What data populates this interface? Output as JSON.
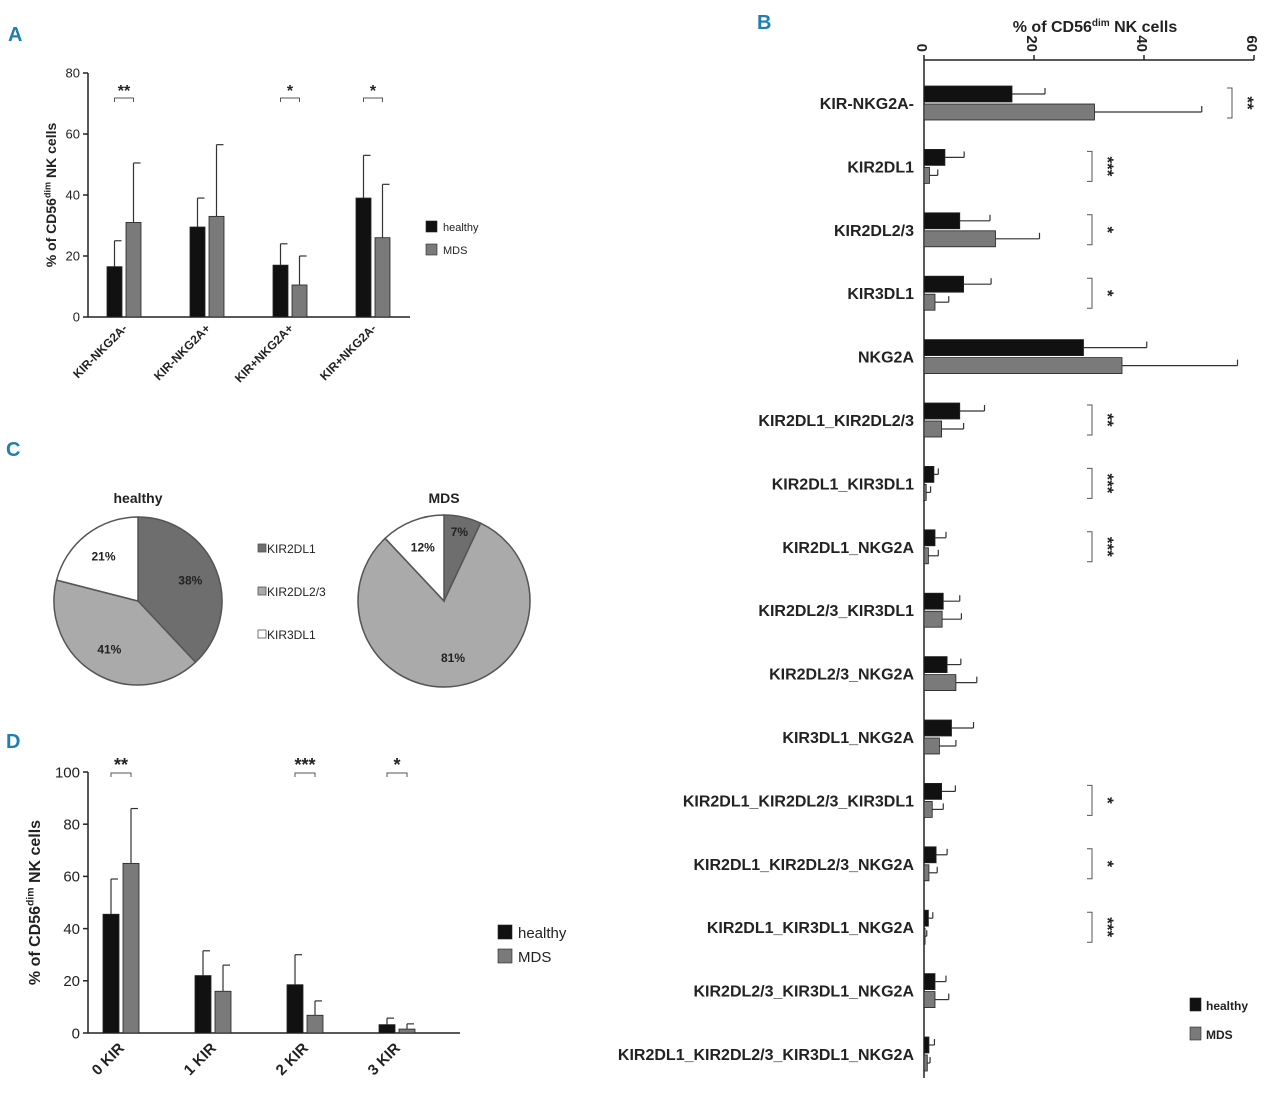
{
  "colors": {
    "healthy": "#111111",
    "mds": "#7a7a7a",
    "slice_dark": "#6e6e6e",
    "slice_light": "#aaaaaa",
    "slice_white": "#ffffff",
    "panel_label": "#1f7fae"
  },
  "chart_data": [
    {
      "panel": "A",
      "type": "bar",
      "ylabel_prefix": "% of CD56",
      "ylabel_sup": "dim",
      "ylabel_suffix": " NK cells",
      "ylim": [
        0,
        80
      ],
      "yticks": [
        0,
        20,
        40,
        60,
        80
      ],
      "categories": [
        "KIR-NKG2A-",
        "KIR-NKG2A+",
        "KIR+NKG2A+",
        "KIR+NKG2A-"
      ],
      "series": [
        {
          "name": "healthy",
          "values": [
            16.5,
            29.5,
            17,
            39
          ],
          "errors": [
            8.5,
            9.5,
            7,
            14
          ]
        },
        {
          "name": "MDS",
          "values": [
            31,
            33,
            10.5,
            26
          ],
          "errors": [
            19.5,
            23.5,
            9.5,
            17.5
          ]
        }
      ],
      "significance": [
        "**",
        "",
        "*",
        "*"
      ],
      "legend": [
        "healthy",
        "MDS"
      ]
    },
    {
      "panel": "B",
      "type": "bar",
      "orientation": "horizontal",
      "xlabel_prefix": "% of CD56",
      "xlabel_sup": "dim",
      "xlabel_suffix": " NK cells",
      "xlim": [
        0,
        60
      ],
      "xticks": [
        0,
        20,
        40,
        60
      ],
      "categories": [
        "KIR-NKG2A-",
        "KIR2DL1",
        "KIR2DL2/3",
        "KIR3DL1",
        "NKG2A",
        "KIR2DL1_KIR2DL2/3",
        "KIR2DL1_KIR3DL1",
        "KIR2DL1_NKG2A",
        "KIR2DL2/3_KIR3DL1",
        "KIR2DL2/3_NKG2A",
        "KIR3DL1_NKG2A",
        "KIR2DL1_KIR2DL2/3_KIR3DL1",
        "KIR2DL1_KIR2DL2/3_NKG2A",
        "KIR2DL1_KIR3DL1_NKG2A",
        "KIR2DL2/3_KIR3DL1_NKG2A",
        "KIR2DL1_KIR2DL2/3_KIR3DL1_NKG2A"
      ],
      "series": [
        {
          "name": "healthy",
          "values": [
            16,
            3.8,
            6.5,
            7.2,
            29,
            6.5,
            1.8,
            2,
            3.5,
            4.2,
            5,
            3.2,
            2.2,
            0.8,
            2,
            0.9
          ],
          "errors": [
            6,
            3.5,
            5.5,
            5,
            11.5,
            4.5,
            0.8,
            2,
            3,
            2.5,
            4,
            2.5,
            2,
            0.8,
            2,
            1
          ]
        },
        {
          "name": "MDS",
          "values": [
            31,
            1,
            13,
            2,
            36,
            3.2,
            0.4,
            0.8,
            3.3,
            5.8,
            2.8,
            1.5,
            0.9,
            0.2,
            2,
            0.6
          ],
          "errors": [
            19.5,
            1.5,
            8,
            2.5,
            21,
            4,
            0.8,
            1.8,
            3.5,
            3.8,
            3,
            2,
            1.5,
            0.3,
            2.5,
            0.5
          ]
        }
      ],
      "significance": [
        "**",
        "***",
        "*",
        "*",
        "",
        "**",
        "***",
        "***",
        "",
        "",
        "",
        "*",
        "*",
        "***",
        "",
        ""
      ],
      "legend": [
        "healthy",
        "MDS"
      ]
    },
    {
      "panel": "C",
      "type": "pie",
      "pies": [
        {
          "title": "healthy",
          "slices": [
            {
              "label": "KIR2DL1",
              "value": 38,
              "text": "38%"
            },
            {
              "label": "KIR2DL2/3",
              "value": 41,
              "text": "41%"
            },
            {
              "label": "KIR3DL1",
              "value": 21,
              "text": "21%"
            }
          ]
        },
        {
          "title": "MDS",
          "slices": [
            {
              "label": "KIR2DL1",
              "value": 7,
              "text": "7%"
            },
            {
              "label": "KIR2DL2/3",
              "value": 81,
              "text": "81%"
            },
            {
              "label": "KIR3DL1",
              "value": 12,
              "text": "12%"
            }
          ]
        }
      ],
      "legend": [
        "KIR2DL1",
        "KIR2DL2/3",
        "KIR3DL1"
      ]
    },
    {
      "panel": "D",
      "type": "bar",
      "ylabel_prefix": "% of CD56",
      "ylabel_sup": "dim",
      "ylabel_suffix": " NK cells",
      "ylim": [
        0,
        100
      ],
      "yticks": [
        0,
        20,
        40,
        60,
        80,
        100
      ],
      "categories": [
        "0 KIR",
        "1 KIR",
        "2 KIR",
        "3 KIR"
      ],
      "series": [
        {
          "name": "healthy",
          "values": [
            45.5,
            22,
            18.5,
            3.2
          ],
          "errors": [
            13.5,
            9.5,
            11.5,
            2.5
          ]
        },
        {
          "name": "MDS",
          "values": [
            65,
            16,
            6.8,
            1.5
          ],
          "errors": [
            21,
            10,
            5.5,
            2
          ]
        }
      ],
      "significance": [
        "**",
        "",
        "***",
        "*"
      ],
      "legend": [
        "healthy",
        "MDS"
      ]
    }
  ]
}
